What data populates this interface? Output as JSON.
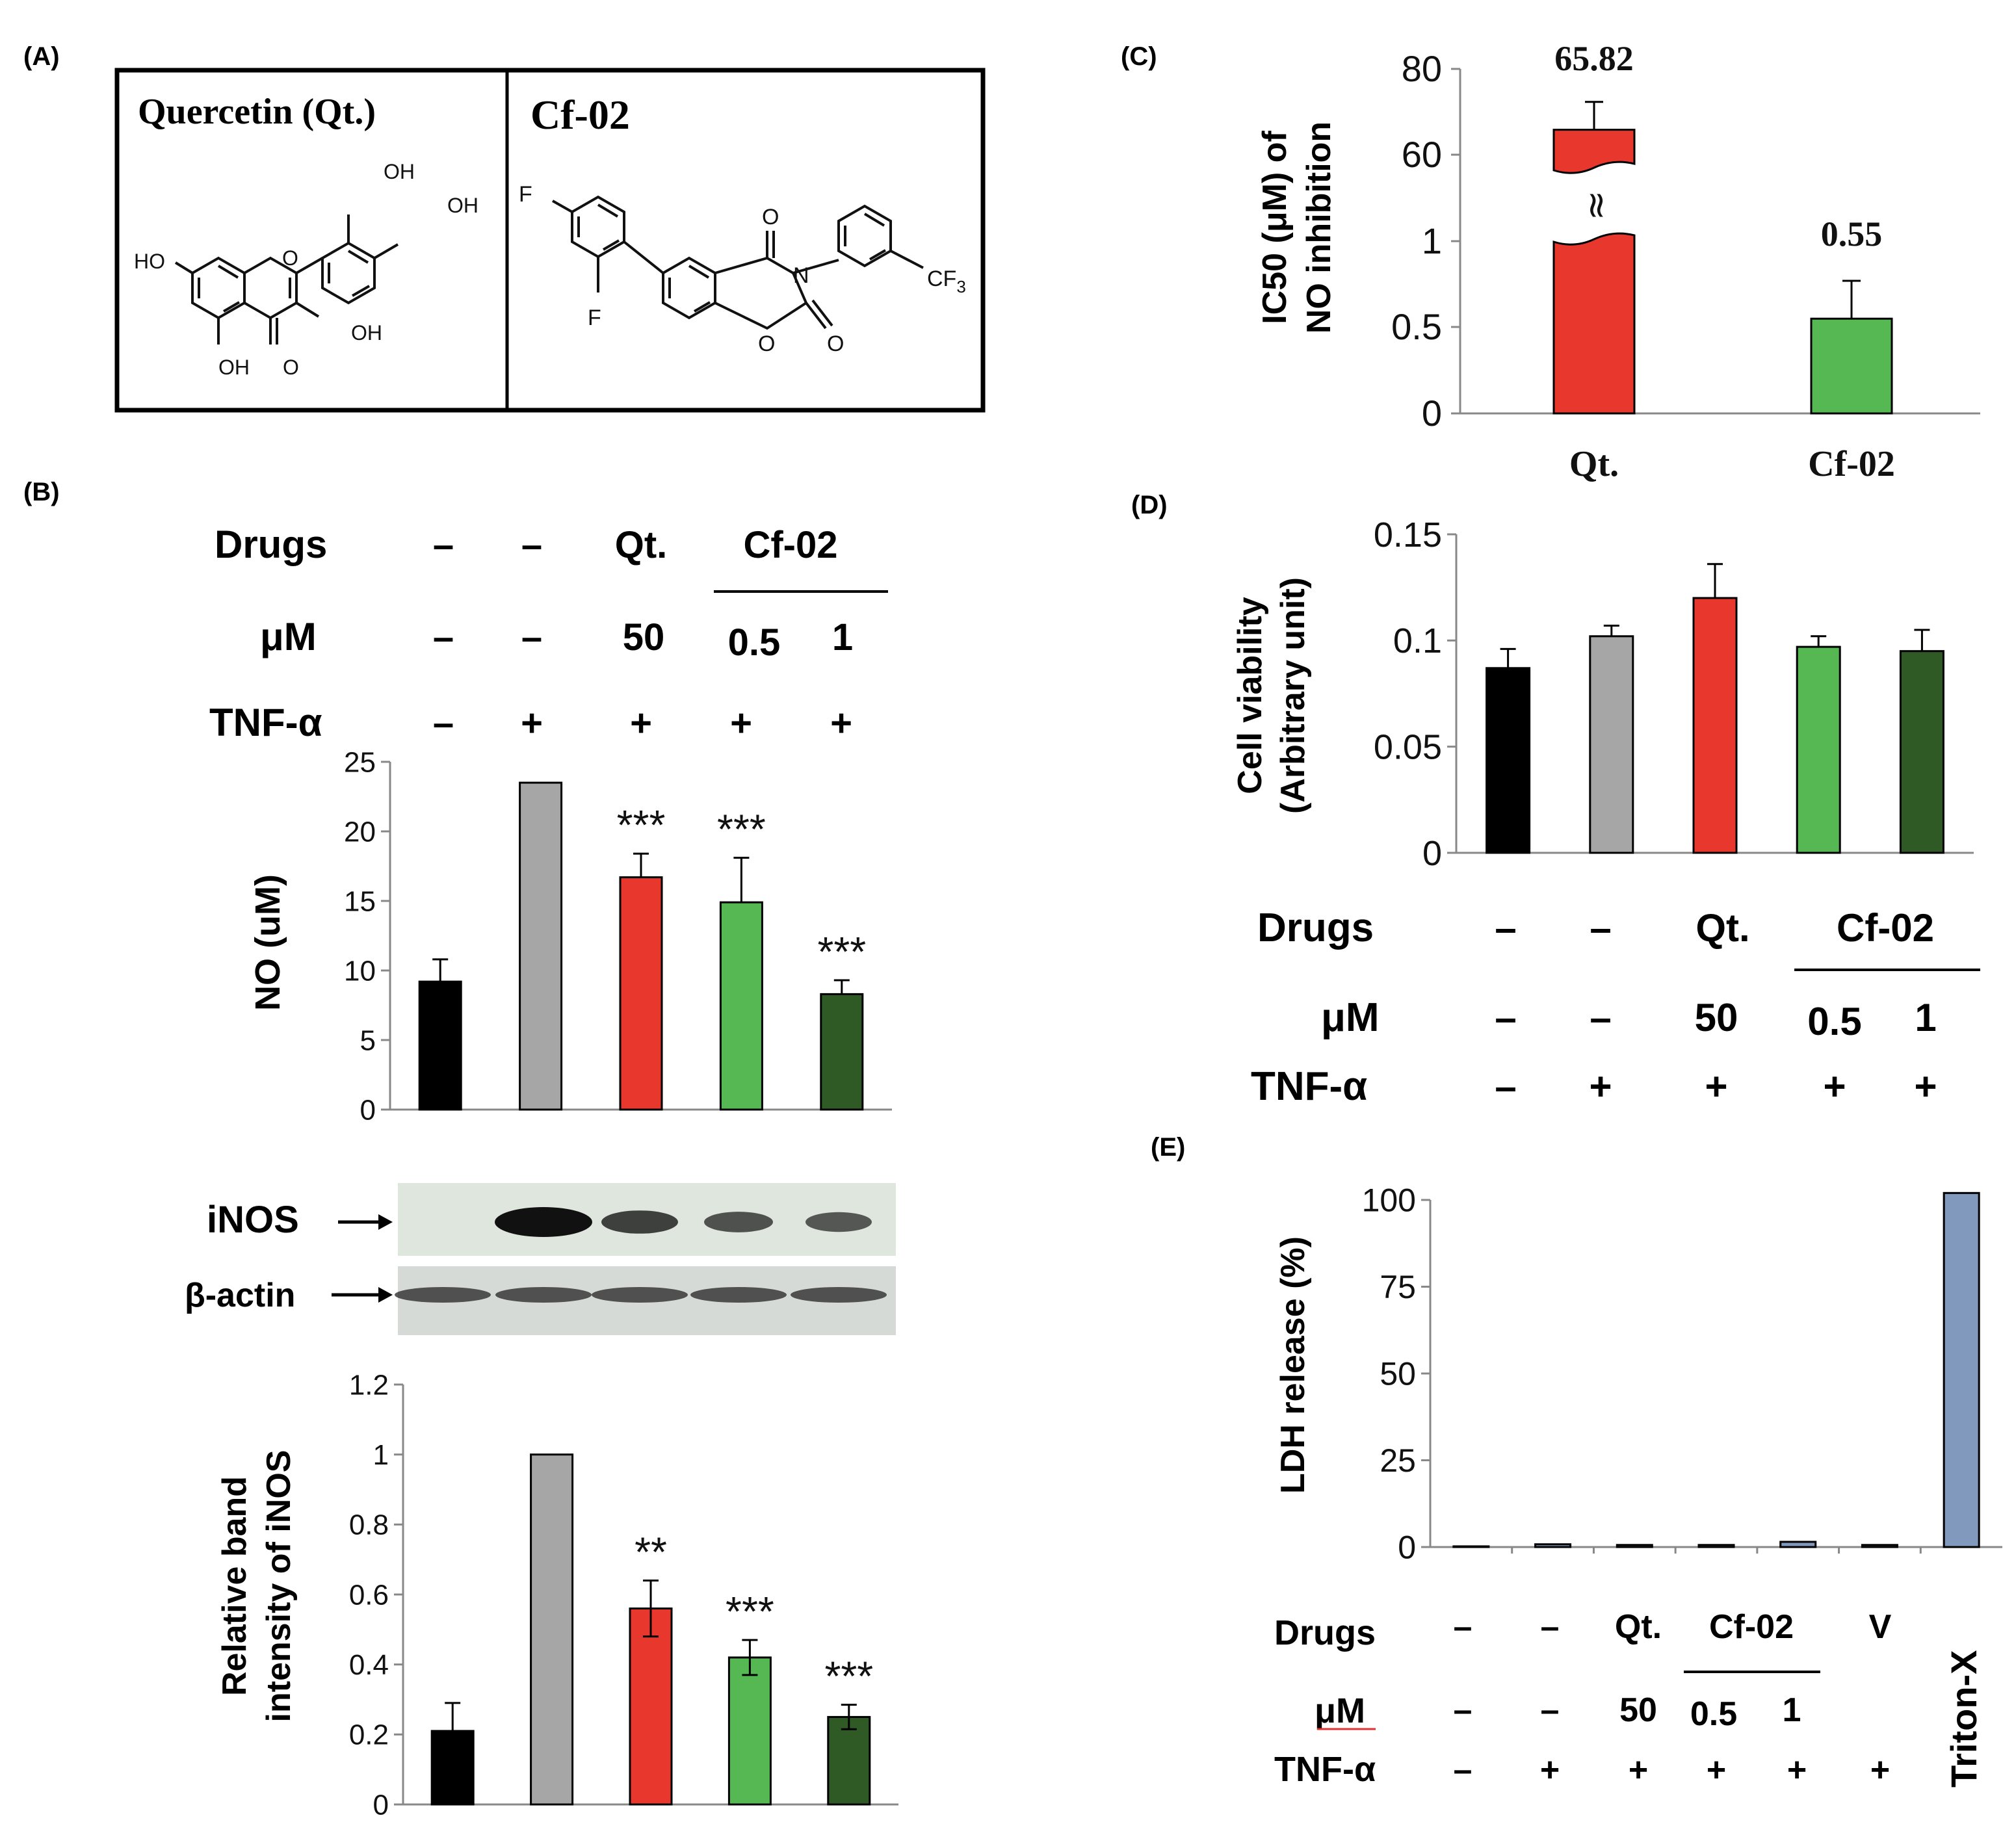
{
  "colors": {
    "black": "#000000",
    "gray": "#a6a6a6",
    "red": "#e8382d",
    "green": "#56b853",
    "darkgreen": "#2f5a25",
    "steel": "#8099bc"
  },
  "panels": {
    "A": {
      "label": "(A)",
      "quercetin_title": "Quercetin (Qt.)",
      "cf02_title": "Cf-02",
      "qt_atoms": {
        "oh1": "OH",
        "oh2": "OH",
        "ho": "HO",
        "oh3": "OH",
        "oh4": "OH",
        "o_ring": "O",
        "o_keto": "O"
      },
      "cf_atoms": {
        "f1": "F",
        "f2": "F",
        "n": "N",
        "o1": "O",
        "o2": "O",
        "o3": "O",
        "cf3": "CF",
        "cf3_sub": "3"
      }
    },
    "B": {
      "label": "(B)"
    },
    "C": {
      "label": "(C)"
    },
    "D": {
      "label": "(D)"
    },
    "E": {
      "label": "(E)"
    }
  },
  "conditions": {
    "drugs_label": "Drugs",
    "um_label": "μM",
    "tnf_label": "TNF-α",
    "dash": "–",
    "plus": "+",
    "qt": "Qt.",
    "cf02": "Cf-02",
    "v": "V",
    "triton": "Triton-X",
    "dose_50": "50",
    "dose_05": "0.5",
    "dose_1": "1"
  },
  "western": {
    "inos_label": "iNOS",
    "actin_label": "β-actin",
    "inos_band_strength": [
      0.0,
      1.0,
      0.6,
      0.45,
      0.4
    ],
    "actin_band_strength": [
      1.0,
      1.0,
      1.0,
      1.0,
      1.0
    ]
  },
  "chart_data": [
    {
      "id": "B_no",
      "type": "bar",
      "title": "",
      "ylabel": "NO (uM)",
      "ylim": [
        0,
        25
      ],
      "yticks": [
        0,
        5,
        10,
        15,
        20,
        25
      ],
      "ytick_labels": [
        "0",
        "5",
        "10",
        "15",
        "20",
        "25"
      ],
      "categories": [
        "control",
        "TNF-α",
        "Qt. 50",
        "Cf-02 0.5",
        "Cf-02 1"
      ],
      "values": [
        9.2,
        23.5,
        16.7,
        14.9,
        8.3
      ],
      "errors": [
        1.6,
        0,
        1.7,
        3.2,
        1.0
      ],
      "colors": [
        "black",
        "gray",
        "red",
        "green",
        "darkgreen"
      ],
      "annotations": [
        "",
        "",
        "***",
        "***",
        "***"
      ]
    },
    {
      "id": "B_inos",
      "type": "bar",
      "title": "",
      "ylabel": "Relative band intensity of iNOS",
      "ylabel_lines": [
        "Relative band",
        "intensity of iNOS"
      ],
      "ylim": [
        0,
        1.2
      ],
      "yticks": [
        0,
        0.2,
        0.4,
        0.6,
        0.8,
        1,
        1.2
      ],
      "ytick_labels": [
        "0",
        "0.2",
        "0.4",
        "0.6",
        "0.8",
        "1",
        "1.2"
      ],
      "categories": [
        "control",
        "TNF-α",
        "Qt. 50",
        "Cf-02 0.5",
        "Cf-02 1"
      ],
      "values": [
        0.21,
        1.0,
        0.56,
        0.42,
        0.25
      ],
      "errors": [
        0.08,
        0,
        0.08,
        0.05,
        0.035
      ],
      "colors": [
        "black",
        "gray",
        "red",
        "green",
        "darkgreen"
      ],
      "annotations": [
        "",
        "",
        "**",
        "***",
        "***"
      ]
    },
    {
      "id": "C_ic50",
      "type": "bar",
      "title": "",
      "ylabel": "IC50 (μM) of NO inhibition",
      "ylabel_lines": [
        "IC50 (μM) of",
        "NO inhibition"
      ],
      "broken_axis": true,
      "ytick_labels": [
        "0",
        "0.5",
        "1",
        "60",
        "80"
      ],
      "categories": [
        "Qt.",
        "Cf-02"
      ],
      "values": [
        65.82,
        0.55
      ],
      "errors": [
        6.5,
        0.22
      ],
      "value_labels": [
        "65.82",
        "0.55"
      ],
      "colors": [
        "red",
        "green"
      ],
      "break_symbol": "≈"
    },
    {
      "id": "D_viability",
      "type": "bar",
      "title": "",
      "ylabel": "Cell viability (Arbitrary unit)",
      "ylabel_lines": [
        "Cell viability",
        "(Arbitrary unit)"
      ],
      "ylim": [
        0,
        0.15
      ],
      "yticks": [
        0,
        0.05,
        0.1,
        0.15
      ],
      "ytick_labels": [
        "0",
        "0.05",
        "0.1",
        "0.15"
      ],
      "categories": [
        "control",
        "TNF-α",
        "Qt. 50",
        "Cf-02 0.5",
        "Cf-02 1"
      ],
      "values": [
        0.087,
        0.102,
        0.12,
        0.097,
        0.095
      ],
      "errors": [
        0.009,
        0.005,
        0.016,
        0.005,
        0.01
      ],
      "colors": [
        "black",
        "gray",
        "red",
        "green",
        "darkgreen"
      ]
    },
    {
      "id": "E_ldh",
      "type": "bar",
      "title": "",
      "ylabel": "LDH release (%)",
      "ylim": [
        0,
        100
      ],
      "yticks": [
        0,
        25,
        50,
        75,
        100
      ],
      "ytick_labels": [
        "0",
        "25",
        "50",
        "75",
        "100"
      ],
      "categories": [
        "control",
        "TNF-α",
        "Qt. 50",
        "Cf-02 0.5",
        "Cf-02 1",
        "V",
        "Triton-X"
      ],
      "values": [
        0.2,
        0.8,
        0.6,
        0.6,
        1.5,
        0.6,
        102
      ],
      "colors": [
        "steel",
        "steel",
        "steel",
        "steel",
        "steel",
        "steel",
        "steel"
      ]
    }
  ]
}
